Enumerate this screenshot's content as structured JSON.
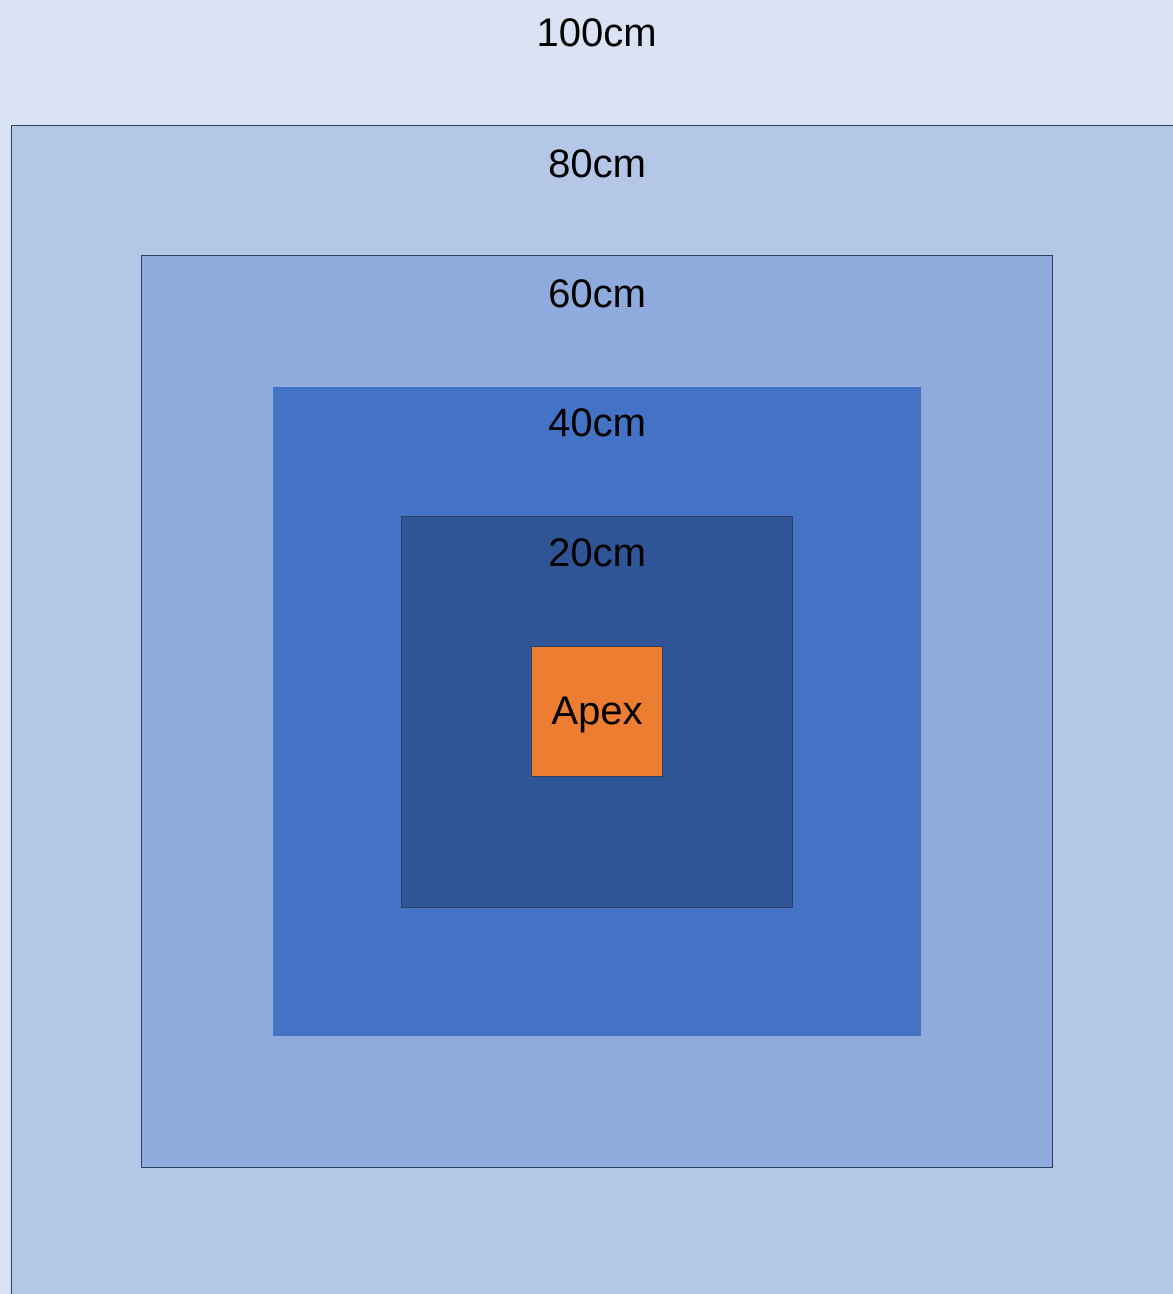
{
  "zones": {
    "z100": {
      "label": "100cm",
      "color": "#dae3f3"
    },
    "z80": {
      "label": "80cm",
      "color": "#b4c7e7"
    },
    "z60": {
      "label": "60cm",
      "color": "#8faadc"
    },
    "z40": {
      "label": "40cm",
      "color": "#4472c4"
    },
    "z20": {
      "label": "20cm",
      "color": "#2f5597"
    }
  },
  "apex": {
    "label": "Apex",
    "color": "#ed7d31"
  },
  "border_color": "#2f3f5f"
}
